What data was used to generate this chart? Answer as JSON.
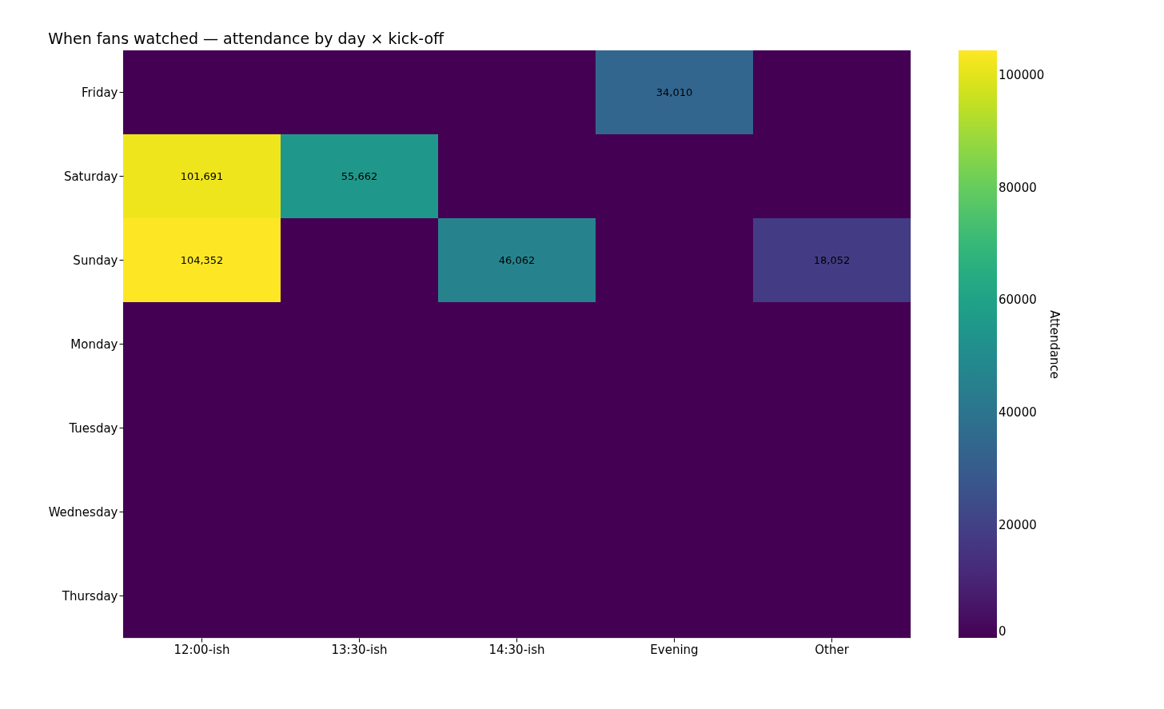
{
  "chart_data": {
    "type": "heatmap",
    "title": "When fans watched — attendance by day × kick-off",
    "clabel": "Attendance",
    "categories": [
      "12:00-ish",
      "13:30-ish",
      "14:30-ish",
      "Evening",
      "Other"
    ],
    "y_categories": [
      "Friday",
      "Saturday",
      "Sunday",
      "Monday",
      "Tuesday",
      "Wednesday",
      "Thursday"
    ],
    "cells": [
      [
        0,
        0,
        0,
        34010,
        0
      ],
      [
        101691,
        55662,
        0,
        0,
        0
      ],
      [
        104352,
        0,
        46062,
        0,
        18052
      ],
      [
        0,
        0,
        0,
        0,
        0
      ],
      [
        0,
        0,
        0,
        0,
        0
      ],
      [
        0,
        0,
        0,
        0,
        0
      ],
      [
        0,
        0,
        0,
        0,
        0
      ]
    ],
    "cell_labels": [
      [
        null,
        null,
        null,
        "34,010",
        null
      ],
      [
        "101,691",
        "55,662",
        null,
        null,
        null
      ],
      [
        "104,352",
        null,
        "46,062",
        null,
        "18,052"
      ],
      [
        null,
        null,
        null,
        null,
        null
      ],
      [
        null,
        null,
        null,
        null,
        null
      ],
      [
        null,
        null,
        null,
        null,
        null
      ],
      [
        null,
        null,
        null,
        null,
        null
      ]
    ],
    "clim": [
      0,
      104352
    ],
    "cticks": [
      0,
      20000,
      40000,
      60000,
      80000,
      100000
    ]
  }
}
